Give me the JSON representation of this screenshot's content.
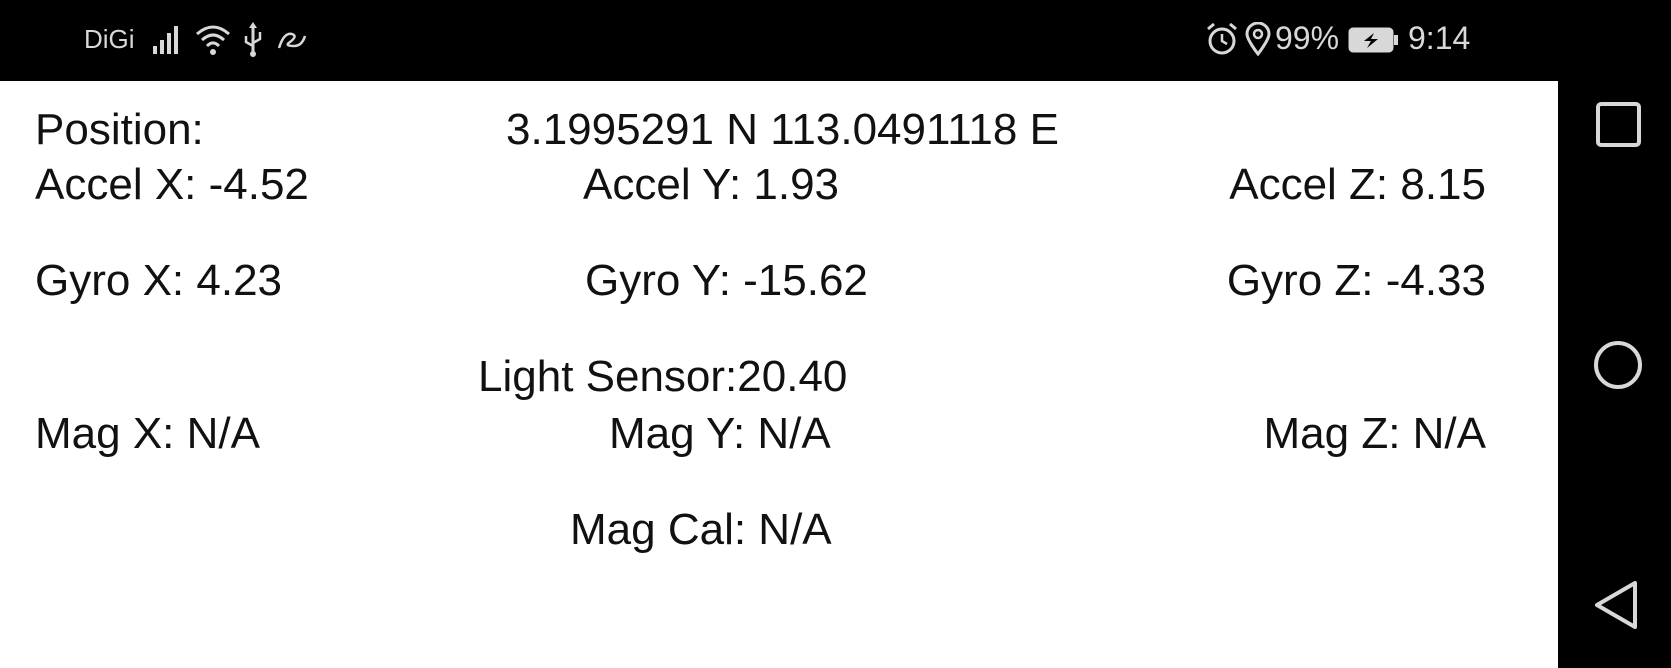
{
  "status_bar": {
    "carrier": "DiGi",
    "battery_percent": "99%",
    "time": "9:14",
    "icons": [
      "signal-icon",
      "wifi-icon",
      "usb-icon",
      "app-notification-icon",
      "alarm-icon",
      "location-icon",
      "battery-charging-icon"
    ]
  },
  "sensors": {
    "position_label": "Position:",
    "position_value": "3.1995291 N 113.0491118 E",
    "accel_x": "Accel X: -4.52",
    "accel_y": "Accel Y: 1.93",
    "accel_z": "Accel Z: 8.15",
    "gyro_x": "Gyro X: 4.23",
    "gyro_y": "Gyro Y: -15.62",
    "gyro_z": "Gyro Z: -4.33",
    "light": "Light Sensor:20.40",
    "mag_x": "Mag X: N/A",
    "mag_y": "Mag Y: N/A",
    "mag_z": "Mag Z: N/A",
    "mag_cal": "Mag Cal: N/A"
  },
  "nav_bar": {
    "buttons": [
      "recents-button",
      "home-button",
      "back-button"
    ]
  },
  "colors": {
    "background": "#ffffff",
    "text": "#111111",
    "bar": "#000000",
    "bar_text": "#d8d8d8"
  }
}
